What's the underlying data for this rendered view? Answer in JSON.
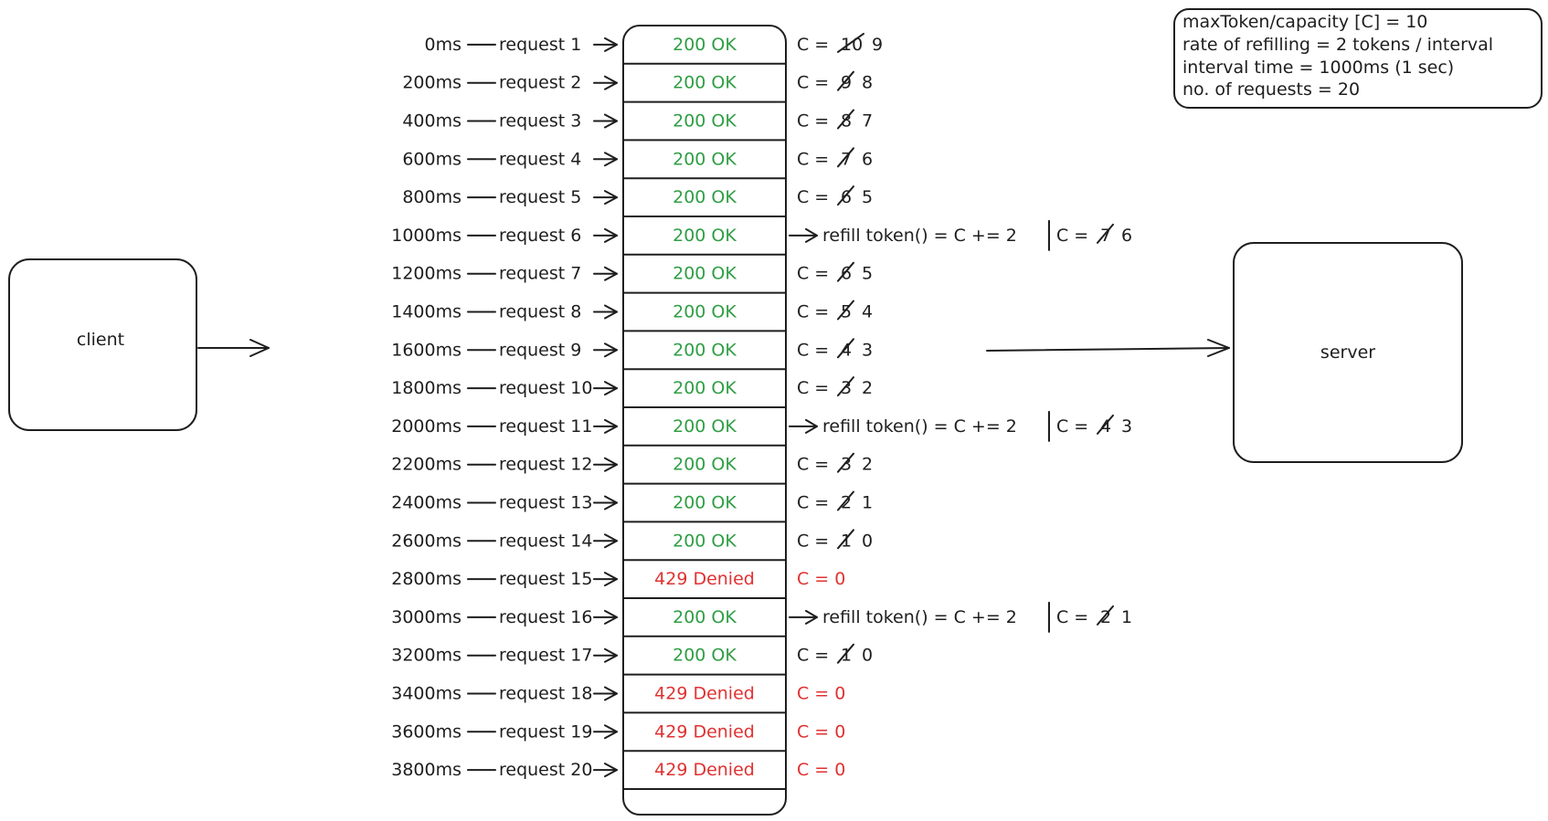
{
  "client": {
    "label": "client"
  },
  "server": {
    "label": "server"
  },
  "info": {
    "lines": [
      "maxToken/capacity [C] = 10",
      "rate of refilling = 2 tokens / interval",
      "interval time = 1000ms (1 sec)",
      "no. of requests = 20"
    ]
  },
  "requests": [
    {
      "time": "0ms",
      "label": "request 1",
      "status": "200 OK",
      "ok": true,
      "cap_old": "10",
      "cap_new": "9"
    },
    {
      "time": "200ms",
      "label": "request 2",
      "status": "200 OK",
      "ok": true,
      "cap_old": "9",
      "cap_new": "8"
    },
    {
      "time": "400ms",
      "label": "request 3",
      "status": "200 OK",
      "ok": true,
      "cap_old": "8",
      "cap_new": "7"
    },
    {
      "time": "600ms",
      "label": "request 4",
      "status": "200 OK",
      "ok": true,
      "cap_old": "7",
      "cap_new": "6"
    },
    {
      "time": "800ms",
      "label": "request 5",
      "status": "200 OK",
      "ok": true,
      "cap_old": "6",
      "cap_new": "5"
    },
    {
      "time": "1000ms",
      "label": "request 6",
      "status": "200 OK",
      "ok": true,
      "refill": true,
      "cap_old": "7",
      "cap_new": "6"
    },
    {
      "time": "1200ms",
      "label": "request 7",
      "status": "200 OK",
      "ok": true,
      "cap_old": "6",
      "cap_new": "5"
    },
    {
      "time": "1400ms",
      "label": "request 8",
      "status": "200 OK",
      "ok": true,
      "cap_old": "5",
      "cap_new": "4"
    },
    {
      "time": "1600ms",
      "label": "request 9",
      "status": "200 OK",
      "ok": true,
      "cap_old": "4",
      "cap_new": "3"
    },
    {
      "time": "1800ms",
      "label": "request 10",
      "status": "200 OK",
      "ok": true,
      "cap_old": "3",
      "cap_new": "2"
    },
    {
      "time": "2000ms",
      "label": "request 11",
      "status": "200 OK",
      "ok": true,
      "refill": true,
      "cap_old": "4",
      "cap_new": "3"
    },
    {
      "time": "2200ms",
      "label": "request 12",
      "status": "200 OK",
      "ok": true,
      "cap_old": "3",
      "cap_new": "2"
    },
    {
      "time": "2400ms",
      "label": "request 13",
      "status": "200 OK",
      "ok": true,
      "cap_old": "2",
      "cap_new": "1"
    },
    {
      "time": "2600ms",
      "label": "request 14",
      "status": "200 OK",
      "ok": true,
      "cap_old": "1",
      "cap_new": "0"
    },
    {
      "time": "2800ms",
      "label": "request 15",
      "status": "429 Denied",
      "ok": false,
      "cap_text": "C = 0"
    },
    {
      "time": "3000ms",
      "label": "request 16",
      "status": "200 OK",
      "ok": true,
      "refill": true,
      "cap_old": "2",
      "cap_new": "1"
    },
    {
      "time": "3200ms",
      "label": "request 17",
      "status": "200 OK",
      "ok": true,
      "cap_old": "1",
      "cap_new": "0"
    },
    {
      "time": "3400ms",
      "label": "request 18",
      "status": "429 Denied",
      "ok": false,
      "cap_text": "C = 0"
    },
    {
      "time": "3600ms",
      "label": "request 19",
      "status": "429 Denied",
      "ok": false,
      "cap_text": "C = 0"
    },
    {
      "time": "3800ms",
      "label": "request 20",
      "status": "429 Denied",
      "ok": false,
      "cap_text": "C = 0"
    }
  ],
  "refill_text": "refill token() = C += 2",
  "cap_prefix": "C =",
  "colors": {
    "ok": "#2f9e44",
    "denied": "#e03131",
    "ink": "#1e1e1e"
  }
}
